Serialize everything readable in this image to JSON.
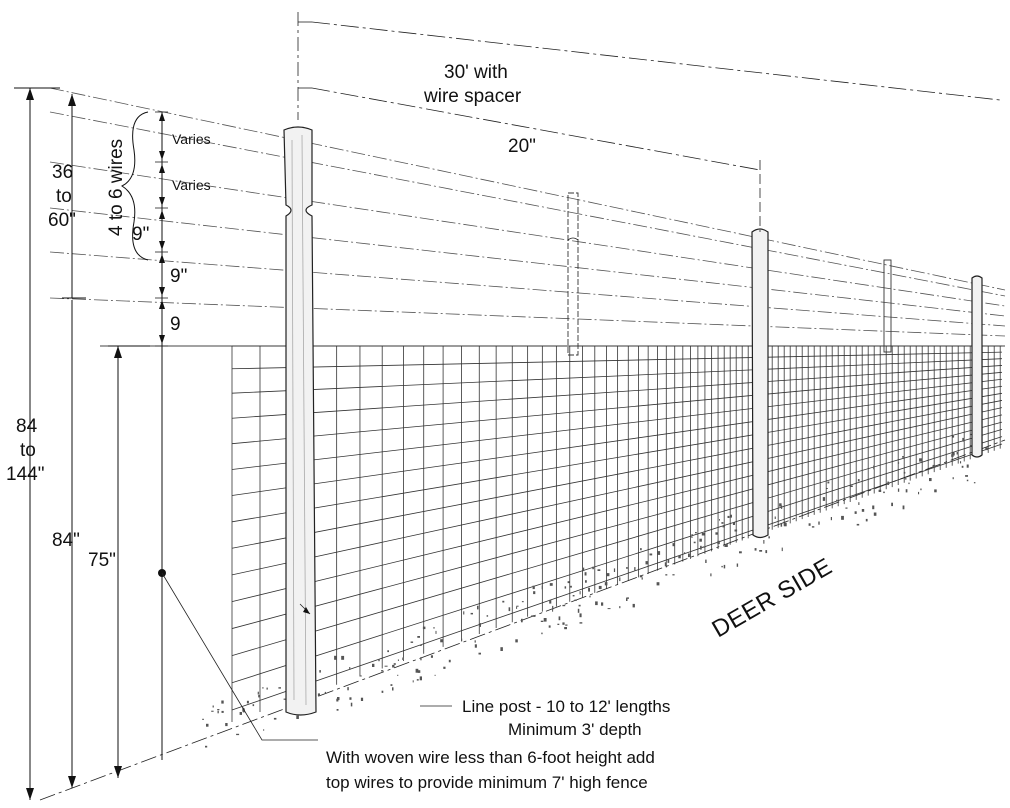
{
  "dimensions": {
    "outer_total_top": "84",
    "outer_total_mid": "to",
    "outer_total_bot": "144\"",
    "top_section_top": "36",
    "top_section_mid": "to",
    "top_section_bot": "60\"",
    "woven_total": "84\"",
    "woven_height": "75\"",
    "spacing_varies_1": "Varies",
    "spacing_varies_2": "Varies",
    "spacing_9_a": "9\"",
    "spacing_9_b": "9\"",
    "spacing_9_c": "9",
    "wire_count": "4 to 6 wires",
    "post_spacing": "30' with",
    "post_spacing_line2": "wire spacer",
    "spacer_spacing": "20\""
  },
  "labels": {
    "deer_side": "DEER SIDE",
    "line_post_1": "Line post - 10 to 12' lengths",
    "line_post_2": "Minimum 3' depth",
    "woven_note_1": "With woven wire less than 6-foot height add",
    "woven_note_2": "top wires to provide minimum 7' high fence"
  }
}
